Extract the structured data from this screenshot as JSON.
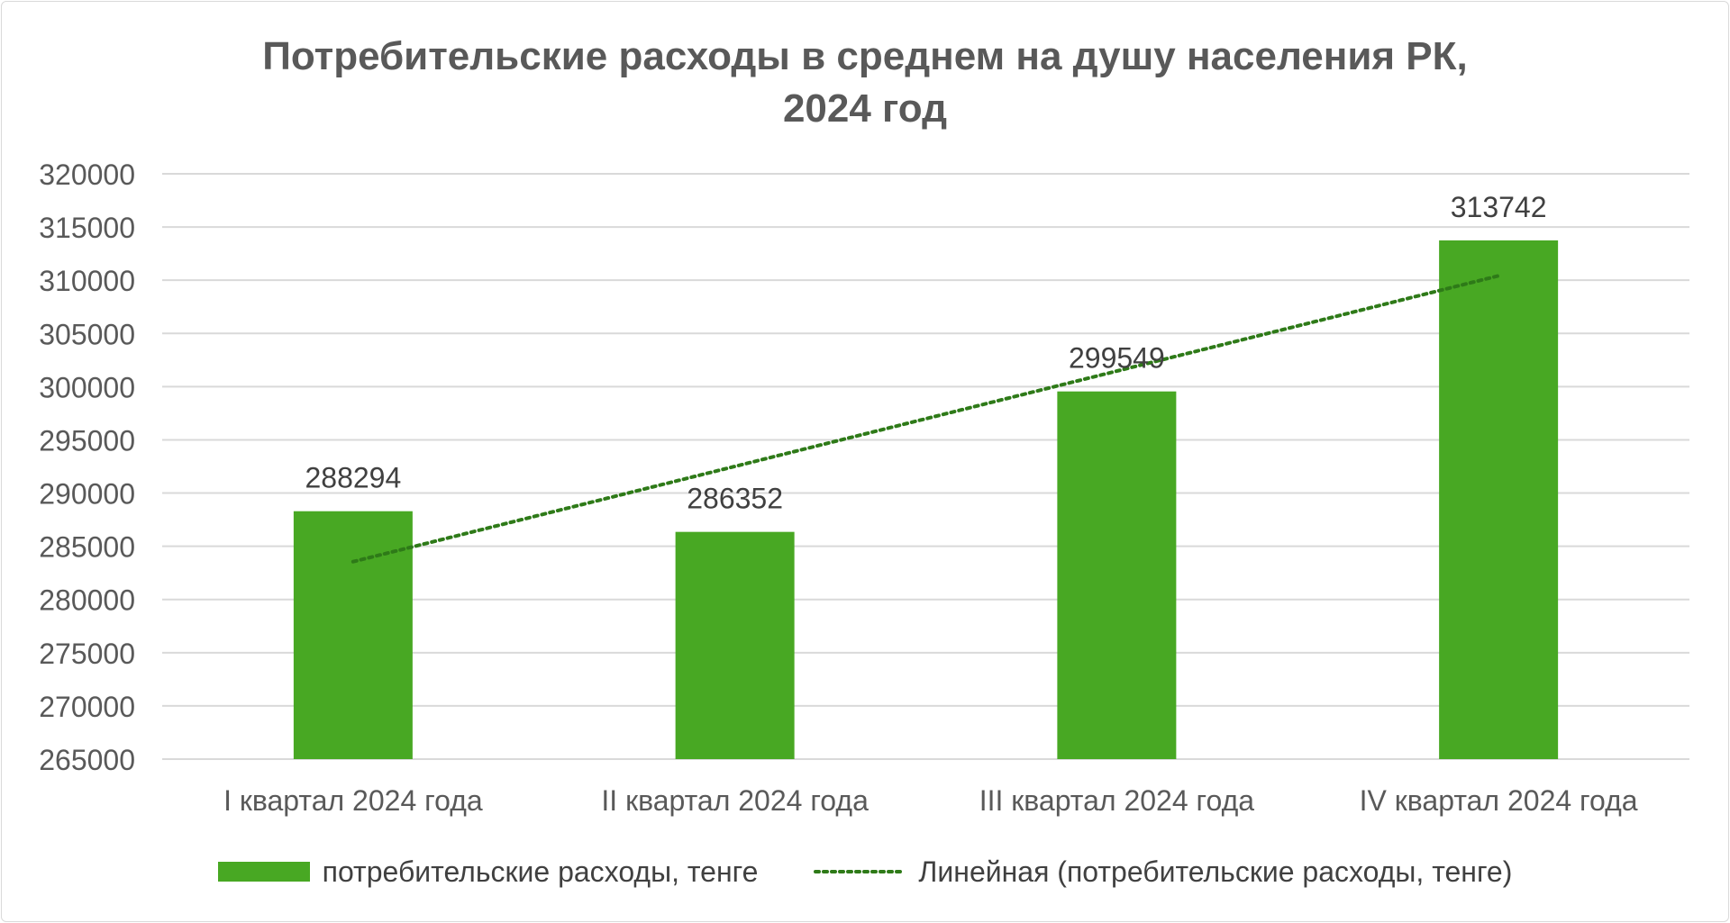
{
  "chart_data": {
    "type": "bar",
    "title": [
      "Потребительские расходы в среднем на душу населения РК,",
      "2024 год"
    ],
    "categories": [
      "I квартал 2024 года",
      "II квартал 2024 года",
      "III квартал 2024 года",
      "IV квартал 2024 года"
    ],
    "series": [
      {
        "name": "потребительские расходы, тенге",
        "values": [
          288294,
          286352,
          299549,
          313742
        ],
        "color": "#48a823",
        "data_labels": [
          "288294",
          "286352",
          "299549",
          "313742"
        ]
      }
    ],
    "trendline": {
      "name": "Линейная (потребительские расходы, тенге)",
      "type": "linear",
      "style": "dotted",
      "color": "#2e7a18"
    },
    "ylim": [
      265000,
      320000
    ],
    "yticks": [
      265000,
      270000,
      275000,
      280000,
      285000,
      290000,
      295000,
      300000,
      305000,
      310000,
      315000,
      320000
    ],
    "ytick_labels": [
      "265000",
      "270000",
      "275000",
      "280000",
      "285000",
      "290000",
      "295000",
      "300000",
      "305000",
      "310000",
      "315000",
      "320000"
    ],
    "xlabel": "",
    "ylabel": "",
    "grid": true,
    "legend_position": "bottom",
    "colors": {
      "gridline": "#d9d9d9",
      "axis_text": "#595959",
      "title": "#595959",
      "label": "#404040"
    }
  }
}
